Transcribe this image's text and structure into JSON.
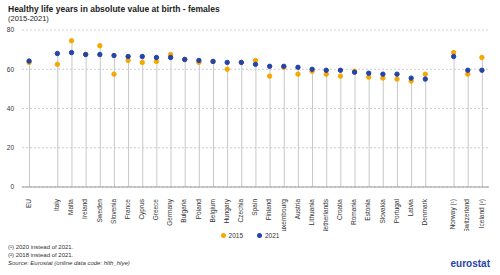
{
  "chart_data": {
    "type": "lollipop",
    "title": "Healthy life years in absolute value at birth - females",
    "subtitle": "(2015-2021)",
    "categories": [
      "EU",
      null,
      "Italy",
      "Malta",
      "Ireland",
      "Sweden",
      "Slovenia",
      "France",
      "Cyprus",
      "Greece",
      "Germany",
      "Bulgaria",
      "Poland",
      "Belgium",
      "Hungary",
      "Czechia",
      "Spain",
      "Finland",
      "Luxembourg",
      "Austria",
      "Lithuania",
      "Netherlands",
      "Croatia",
      "Romania",
      "Estonia",
      "Slovakia",
      "Portugal",
      "Latvia",
      "Denmark",
      null,
      "Norway (¹)",
      "Switzerland",
      "Iceland (²)"
    ],
    "series": [
      {
        "name": "2015",
        "color": "#f6a800",
        "marker": "circle",
        "values": [
          63.5,
          null,
          62.5,
          74.5,
          67.6,
          72.0,
          57.5,
          64.5,
          63.5,
          64.0,
          67.5,
          65.0,
          63.5,
          64.0,
          60.0,
          63.5,
          64.5,
          56.5,
          61.0,
          57.5,
          59.0,
          57.5,
          56.5,
          59.0,
          56.0,
          55.5,
          55.0,
          54.0,
          57.5,
          null,
          68.5,
          57.5,
          66.0
        ]
      },
      {
        "name": "2021",
        "color": "#2644a7",
        "marker": "circle",
        "values": [
          64.2,
          null,
          68.0,
          68.5,
          67.5,
          67.5,
          67.0,
          66.5,
          66.5,
          66.0,
          66.0,
          65.0,
          64.5,
          64.0,
          63.5,
          63.5,
          62.5,
          61.5,
          61.5,
          61.0,
          60.0,
          59.5,
          59.5,
          58.5,
          58.0,
          57.5,
          57.5,
          55.5,
          55.0,
          null,
          66.5,
          59.5,
          59.5
        ]
      }
    ],
    "ylim": [
      0,
      80
    ],
    "yticks": [
      0,
      20,
      40,
      60,
      80
    ],
    "grid": true,
    "legend": "bottom",
    "footnotes": [
      "(¹) 2020 instead of 2021.",
      "(²) 2018 instead of 2021.",
      "Source: Eurostat (online data code: hlth_hlye)"
    ],
    "logo": "eurostat"
  }
}
